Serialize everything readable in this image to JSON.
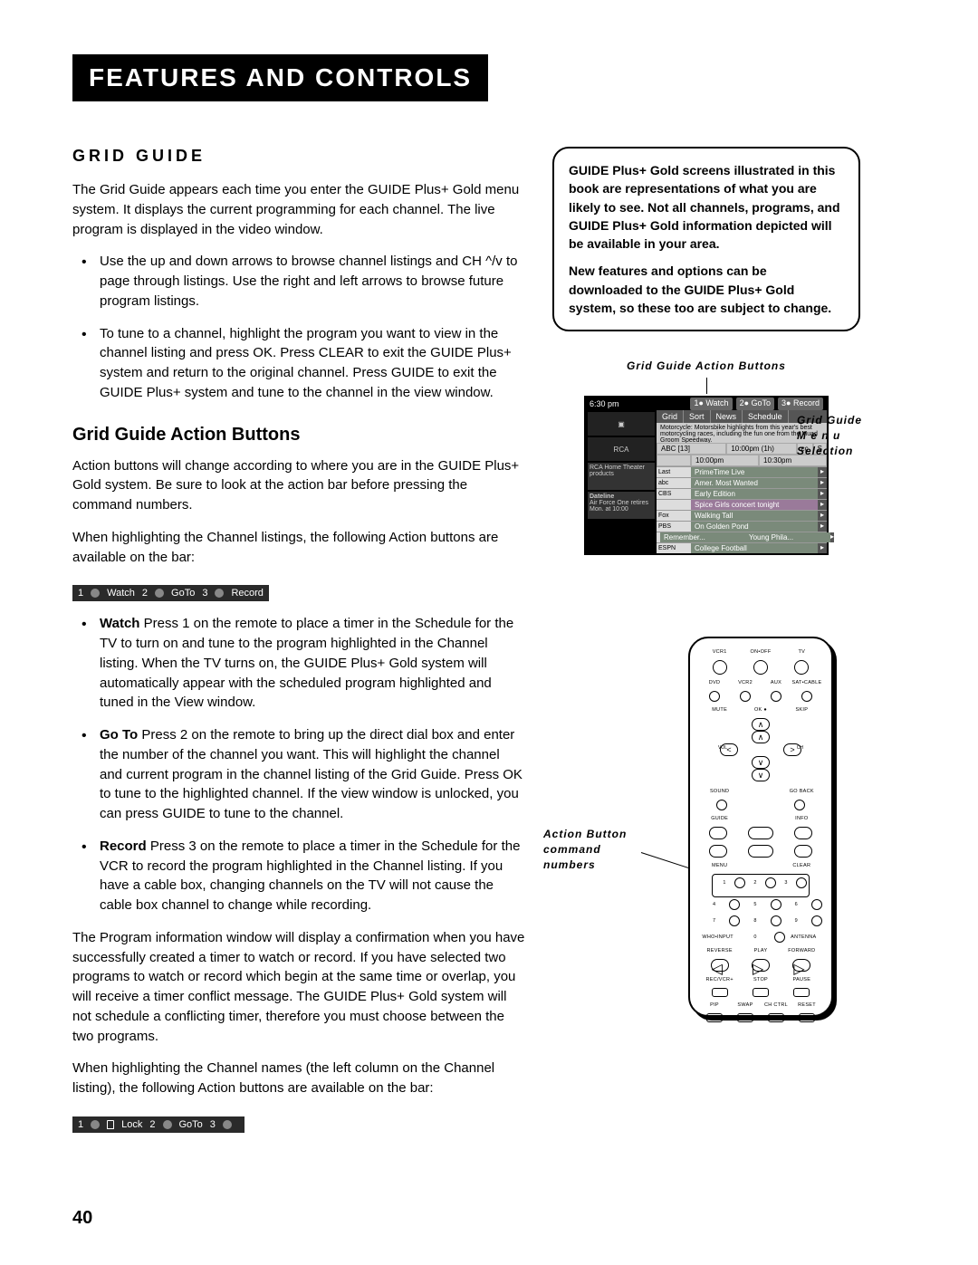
{
  "header": "Features and Controls",
  "page_number": "40",
  "grid_guide": {
    "title": "Grid Guide",
    "intro": "The Grid Guide appears each time you enter the GUIDE Plus+ Gold menu system. It displays the current programming for each channel. The live program is displayed in the video window.",
    "bullets": [
      "Use the up and down arrows to browse channel listings and CH ^/v to page through listings. Use the right and left arrows to browse future program listings.",
      "To tune to a channel, highlight the program you want to view in the channel listing and press OK. Press CLEAR to exit the GUIDE Plus+ system and return to the original channel. Press GUIDE to exit the GUIDE Plus+ system and tune to the channel in the view window."
    ]
  },
  "action_buttons": {
    "title": "Grid Guide Action Buttons",
    "p1": "Action buttons will change according to where you are in the GUIDE Plus+ Gold system. Be sure to look at the action bar before pressing the command numbers.",
    "p2": "When highlighting the Channel listings, the following Action buttons are available on the bar:",
    "bar1": {
      "i1": "1",
      "l1": "Watch",
      "i2": "2",
      "l2": "GoTo",
      "i3": "3",
      "l3": "Record"
    },
    "items": [
      {
        "bold": "Watch",
        "text": "  Press 1 on the remote to place a timer in the Schedule for the TV to turn on and tune to the program highlighted in the Channel listing. When the TV turns on, the GUIDE Plus+ Gold system will automatically appear with the scheduled program highlighted and tuned in the View window."
      },
      {
        "bold": "Go To",
        "text": "  Press 2 on the remote to bring up the direct dial box and enter the number of the channel you want. This will highlight the channel and current program in the channel listing of the Grid Guide. Press OK to tune to the highlighted channel. If the view window is unlocked, you can press GUIDE to tune to the channel."
      },
      {
        "bold": "Record",
        "text": "  Press 3 on the remote to place a timer in the Schedule for the VCR to record the program highlighted in the Channel listing. If you have a cable box, changing channels on the TV will not cause the cable box channel to change while recording."
      }
    ],
    "p3": "The Program information window will display a confirmation when you have successfully created a timer to watch or record. If you have selected two programs to watch or record which begin at the same time or overlap, you will receive a timer conflict message. The GUIDE Plus+ Gold system will not schedule a conflicting timer, therefore you must choose between the two programs.",
    "p4": "When highlighting the Channel names (the left column on the Channel listing), the following Action buttons are available on the bar:",
    "bar2": {
      "i1": "1",
      "l1": "Lock",
      "i2": "2",
      "l2": "GoTo",
      "i3": "3",
      "l3": ""
    }
  },
  "note": {
    "p1": "GUIDE Plus+ Gold screens illustrated in this book are representations of what you are likely to see. Not all channels, programs, and GUIDE Plus+ Gold information depicted will be available in your area.",
    "p2": "New features and options can be downloaded to the GUIDE Plus+ Gold system, so these too are subject to change."
  },
  "captions": {
    "guide_top": "Grid Guide Action Buttons",
    "guide_right": "Grid Guide M e n u Selection",
    "remote": "Action Button command numbers"
  },
  "tv": {
    "time": "6:30 pm",
    "tabs": [
      "1● Watch",
      "2● GoTo",
      "3● Record"
    ],
    "menu": [
      "Grid",
      "Sort",
      "News",
      "Schedule"
    ],
    "desc": "Motorcycle: Motorsbike highlights from this year's best motorcycling races, including the fun one from the Muad Groom Speedway.",
    "head_ch": "ABC  [13]",
    "head_t1": "10:00pm (1h)",
    "head_cc": "cc",
    "head_s": "S",
    "times": [
      "10:00pm",
      "10:30pm"
    ],
    "logo": "RCA",
    "promo": "RCA Home Theater products",
    "show_title": "Dateline",
    "show_sub": "Air Force One retires",
    "show_time": "Mon. at 10:00",
    "rows": [
      {
        "ch": "Last",
        "p": [
          "PrimeTime Live"
        ]
      },
      {
        "ch": "abc",
        "p": [
          "Amer. Most Wanted"
        ]
      },
      {
        "ch": "CBS",
        "p": [
          "Early Edition"
        ]
      },
      {
        "ch": "",
        "p": [
          "Spice Girls concert tonight"
        ],
        "sp": true
      },
      {
        "ch": "Fox",
        "p": [
          "Walking Tall"
        ]
      },
      {
        "ch": "PBS",
        "p": [
          "On Golden Pond"
        ]
      },
      {
        "ch": "",
        "p": [
          "Remember...",
          "Young Phila..."
        ]
      },
      {
        "ch": "ESPN",
        "p": [
          "College Football"
        ]
      }
    ]
  },
  "remote": {
    "r1": [
      "VCR1",
      "ON•OFF",
      "TV"
    ],
    "r2": [
      "DVD",
      "VCR2",
      "AUX",
      "SAT•CABLE"
    ],
    "r3": [
      "MUTE",
      "",
      "SKIP"
    ],
    "dpad": {
      "vol": "VOL",
      "ch": "CH",
      "ok": "OK ●"
    },
    "r4": [
      "SOUND",
      "",
      "GO BACK"
    ],
    "r5": [
      "GUIDE",
      "",
      "INFO"
    ],
    "r6": [
      "MENU",
      "",
      "CLEAR"
    ],
    "nums": [
      "1",
      "2",
      "3",
      "4",
      "5",
      "6",
      "7",
      "8",
      "9"
    ],
    "r7": [
      "WHO•INPUT",
      "0",
      "ANTENNA"
    ],
    "r8": [
      "REVERSE",
      "PLAY",
      "FORWARD"
    ],
    "r9": [
      "REC/VCR+",
      "STOP",
      "PAUSE"
    ],
    "r10": [
      "PIP",
      "SWAP",
      "CH CTRL",
      "RESET"
    ]
  }
}
